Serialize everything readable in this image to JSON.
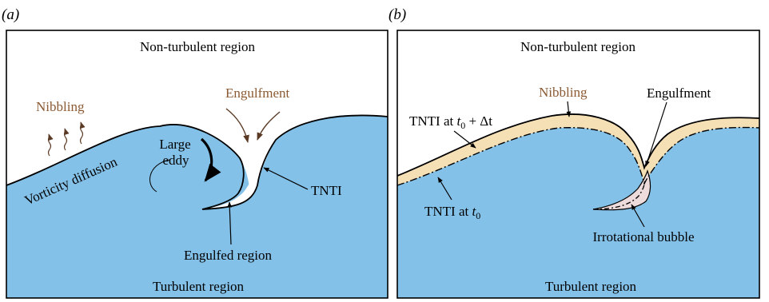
{
  "colors": {
    "turbulent": "#84c1e8",
    "nibbling_band": "#f5dfb4",
    "bubble": "#eedcdc",
    "brown_text": "#8b5a32",
    "brown_arrow": "#5a3a24",
    "outline": "#000000"
  },
  "panel_a": {
    "tag": "(a)",
    "top_label": "Non-turbulent region",
    "bottom_label": "Turbulent region",
    "nibbling": "Nibbling",
    "vorticity_diffusion": "Vorticity diffusion",
    "large_eddy_line1": "Large",
    "large_eddy_line2": "eddy",
    "engulfment": "Engulfment",
    "tnti": "TNTI",
    "engulfed_region": "Engulfed region"
  },
  "panel_b": {
    "tag": "(b)",
    "top_label": "Non-turbulent region",
    "bottom_label": "Turbulent region",
    "nibbling": "Nibbling",
    "engulfment": "Engulfment",
    "irrotational_bubble": "Irrotational bubble",
    "tnti_later": {
      "prefix": "TNTI at ",
      "var": "t",
      "sub": "0",
      "suffix": " + Δt"
    },
    "tnti_t0": {
      "prefix": "TNTI at ",
      "var": "t",
      "sub": "0"
    }
  }
}
